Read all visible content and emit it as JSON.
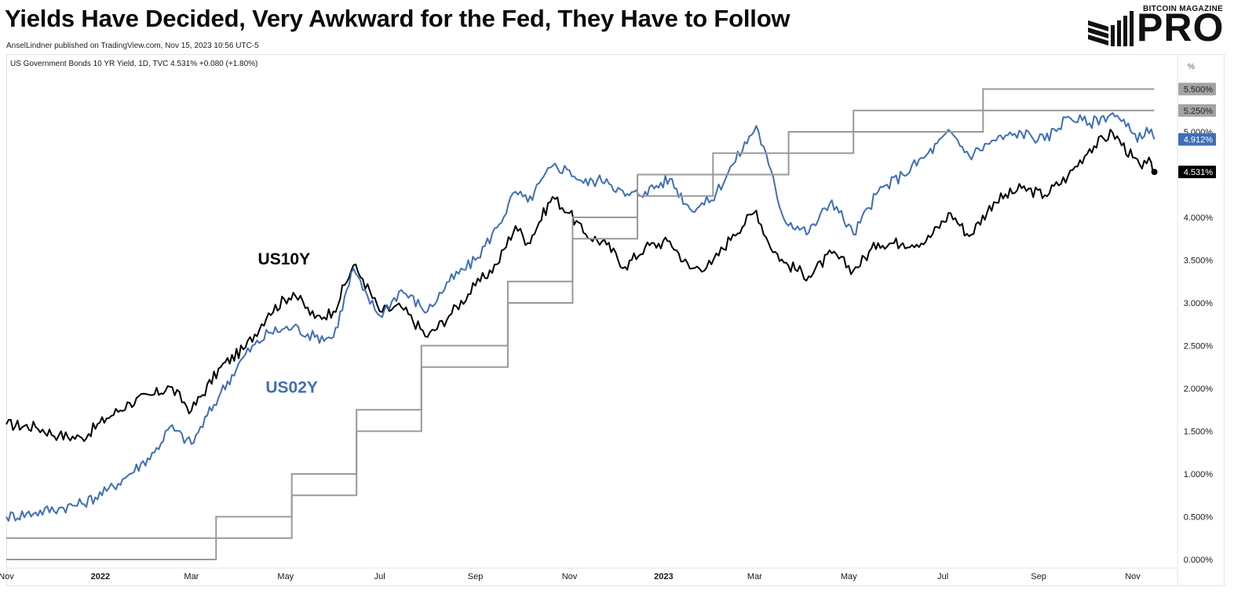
{
  "header": {
    "title": "Yields Have Decided, Very Awkward for the Fed, They Have to Follow",
    "byline": "AnselLindner published on TradingView.com, Nov 15, 2023 10:56 UTC-5",
    "brand_top": "BITCOIN MAGAZINE",
    "brand_main": "PRO"
  },
  "legend": {
    "text": "US Government Bonds 10 YR Yield, 1D, TVC  4.531%  +0.080 (+1.80%)"
  },
  "chart_data": {
    "type": "line",
    "title": "Yields Have Decided, Very Awkward for the Fed, They Have to Follow",
    "y_unit_label": "%",
    "ylim": [
      0,
      6
    ],
    "y_ticks": [
      "0.000%",
      "0.500%",
      "1.000%",
      "1.500%",
      "2.000%",
      "2.500%",
      "3.000%",
      "3.500%",
      "4.000%",
      "4.500%",
      "5.000%",
      "5.500%"
    ],
    "x_ticks": [
      "Nov",
      "2022",
      "Mar",
      "May",
      "Jul",
      "Sep",
      "Nov",
      "2023",
      "Mar",
      "May",
      "Jul",
      "Sep",
      "Nov"
    ],
    "x_tick_dates": [
      "2021-11-01",
      "2022-01-01",
      "2022-03-01",
      "2022-05-01",
      "2022-07-01",
      "2022-09-01",
      "2022-11-01",
      "2023-01-01",
      "2023-03-01",
      "2023-05-01",
      "2023-07-01",
      "2023-09-01",
      "2023-11-01"
    ],
    "x_range": [
      "2021-11-01",
      "2023-11-30"
    ],
    "series": [
      {
        "name": "US10Y",
        "color": "#000000",
        "last_label": "4.531%",
        "points": [
          [
            "2021-11-01",
            1.58
          ],
          [
            "2021-11-20",
            1.55
          ],
          [
            "2021-12-05",
            1.45
          ],
          [
            "2021-12-20",
            1.42
          ],
          [
            "2022-01-05",
            1.65
          ],
          [
            "2022-01-20",
            1.83
          ],
          [
            "2022-02-05",
            1.93
          ],
          [
            "2022-02-15",
            2.02
          ],
          [
            "2022-03-01",
            1.74
          ],
          [
            "2022-03-20",
            2.25
          ],
          [
            "2022-04-05",
            2.48
          ],
          [
            "2022-04-20",
            2.88
          ],
          [
            "2022-05-06",
            3.12
          ],
          [
            "2022-05-20",
            2.82
          ],
          [
            "2022-06-01",
            2.9
          ],
          [
            "2022-06-14",
            3.44
          ],
          [
            "2022-06-20",
            3.28
          ],
          [
            "2022-07-01",
            2.9
          ],
          [
            "2022-07-15",
            2.95
          ],
          [
            "2022-08-01",
            2.6
          ],
          [
            "2022-08-15",
            2.85
          ],
          [
            "2022-09-01",
            3.2
          ],
          [
            "2022-09-15",
            3.45
          ],
          [
            "2022-09-27",
            3.9
          ],
          [
            "2022-10-05",
            3.7
          ],
          [
            "2022-10-21",
            4.24
          ],
          [
            "2022-11-01",
            4.05
          ],
          [
            "2022-11-10",
            3.82
          ],
          [
            "2022-11-25",
            3.68
          ],
          [
            "2022-12-07",
            3.42
          ],
          [
            "2022-12-20",
            3.65
          ],
          [
            "2023-01-05",
            3.72
          ],
          [
            "2023-01-18",
            3.4
          ],
          [
            "2023-02-01",
            3.45
          ],
          [
            "2023-02-15",
            3.8
          ],
          [
            "2023-03-02",
            4.08
          ],
          [
            "2023-03-10",
            3.7
          ],
          [
            "2023-03-20",
            3.47
          ],
          [
            "2023-04-05",
            3.31
          ],
          [
            "2023-04-20",
            3.58
          ],
          [
            "2023-05-04",
            3.38
          ],
          [
            "2023-05-20",
            3.7
          ],
          [
            "2023-06-05",
            3.7
          ],
          [
            "2023-06-20",
            3.72
          ],
          [
            "2023-07-06",
            4.05
          ],
          [
            "2023-07-18",
            3.78
          ],
          [
            "2023-08-03",
            4.18
          ],
          [
            "2023-08-21",
            4.34
          ],
          [
            "2023-09-05",
            4.26
          ],
          [
            "2023-09-20",
            4.48
          ],
          [
            "2023-10-04",
            4.8
          ],
          [
            "2023-10-19",
            4.99
          ],
          [
            "2023-11-01",
            4.7
          ],
          [
            "2023-11-07",
            4.57
          ],
          [
            "2023-11-10",
            4.63
          ],
          [
            "2023-11-13",
            4.64
          ],
          [
            "2023-11-15",
            4.531
          ]
        ]
      },
      {
        "name": "US02Y",
        "color": "#3f6fb5",
        "last_label": "4.912%",
        "points": [
          [
            "2021-11-01",
            0.5
          ],
          [
            "2021-11-20",
            0.55
          ],
          [
            "2021-12-05",
            0.6
          ],
          [
            "2021-12-20",
            0.65
          ],
          [
            "2022-01-05",
            0.8
          ],
          [
            "2022-01-20",
            1.0
          ],
          [
            "2022-02-05",
            1.25
          ],
          [
            "2022-02-15",
            1.55
          ],
          [
            "2022-03-01",
            1.35
          ],
          [
            "2022-03-20",
            1.95
          ],
          [
            "2022-04-05",
            2.4
          ],
          [
            "2022-04-20",
            2.65
          ],
          [
            "2022-05-06",
            2.72
          ],
          [
            "2022-05-20",
            2.6
          ],
          [
            "2022-06-01",
            2.6
          ],
          [
            "2022-06-14",
            3.4
          ],
          [
            "2022-06-20",
            3.15
          ],
          [
            "2022-07-01",
            2.85
          ],
          [
            "2022-07-15",
            3.15
          ],
          [
            "2022-08-01",
            2.9
          ],
          [
            "2022-08-15",
            3.25
          ],
          [
            "2022-09-01",
            3.5
          ],
          [
            "2022-09-15",
            3.88
          ],
          [
            "2022-09-27",
            4.3
          ],
          [
            "2022-10-05",
            4.18
          ],
          [
            "2022-10-21",
            4.6
          ],
          [
            "2022-11-01",
            4.55
          ],
          [
            "2022-11-10",
            4.4
          ],
          [
            "2022-11-25",
            4.45
          ],
          [
            "2022-12-07",
            4.25
          ],
          [
            "2022-12-20",
            4.3
          ],
          [
            "2023-01-05",
            4.45
          ],
          [
            "2023-01-18",
            4.1
          ],
          [
            "2023-02-01",
            4.2
          ],
          [
            "2023-02-15",
            4.62
          ],
          [
            "2023-03-02",
            5.07
          ],
          [
            "2023-03-10",
            4.62
          ],
          [
            "2023-03-20",
            3.98
          ],
          [
            "2023-04-05",
            3.82
          ],
          [
            "2023-04-20",
            4.2
          ],
          [
            "2023-05-04",
            3.8
          ],
          [
            "2023-05-20",
            4.3
          ],
          [
            "2023-06-05",
            4.5
          ],
          [
            "2023-06-20",
            4.72
          ],
          [
            "2023-07-06",
            5.0
          ],
          [
            "2023-07-18",
            4.72
          ],
          [
            "2023-08-03",
            4.9
          ],
          [
            "2023-08-21",
            4.99
          ],
          [
            "2023-09-05",
            4.9
          ],
          [
            "2023-09-20",
            5.18
          ],
          [
            "2023-10-04",
            5.1
          ],
          [
            "2023-10-19",
            5.22
          ],
          [
            "2023-11-01",
            4.98
          ],
          [
            "2023-11-07",
            4.92
          ],
          [
            "2023-11-10",
            5.05
          ],
          [
            "2023-11-13",
            5.03
          ],
          [
            "2023-11-15",
            4.912
          ]
        ]
      },
      {
        "name": "",
        "color": "#999999",
        "last_label": "5.500%",
        "steps": [
          [
            "2021-11-01",
            0.25
          ],
          [
            "2022-03-17",
            0.5
          ],
          [
            "2022-05-05",
            1.0
          ],
          [
            "2022-06-16",
            1.75
          ],
          [
            "2022-07-28",
            2.5
          ],
          [
            "2022-09-22",
            3.25
          ],
          [
            "2022-11-03",
            4.0
          ],
          [
            "2022-12-15",
            4.5
          ],
          [
            "2023-02-02",
            4.75
          ],
          [
            "2023-03-23",
            5.0
          ],
          [
            "2023-05-04",
            5.25
          ],
          [
            "2023-07-27",
            5.5
          ],
          [
            "2023-11-15",
            5.5
          ]
        ]
      },
      {
        "name": "",
        "color": "#999999",
        "last_label": "5.250%",
        "steps": [
          [
            "2021-11-01",
            0.0
          ],
          [
            "2022-03-17",
            0.25
          ],
          [
            "2022-05-05",
            0.75
          ],
          [
            "2022-06-16",
            1.5
          ],
          [
            "2022-07-28",
            2.25
          ],
          [
            "2022-09-22",
            3.0
          ],
          [
            "2022-11-03",
            3.75
          ],
          [
            "2022-12-15",
            4.25
          ],
          [
            "2023-02-02",
            4.5
          ],
          [
            "2023-03-23",
            4.75
          ],
          [
            "2023-05-04",
            5.0
          ],
          [
            "2023-07-27",
            5.25
          ],
          [
            "2023-11-15",
            5.25
          ]
        ]
      }
    ],
    "annotations": [
      {
        "text": "US10Y",
        "color": "#000000",
        "date": "2022-04-30",
        "y": 3.45
      },
      {
        "text": "US02Y",
        "color": "#3f6fb5",
        "date": "2022-05-05",
        "y": 1.95
      }
    ],
    "axis_price_labels": [
      {
        "text": "5.500%",
        "value": 5.5,
        "bg": "#a3a3a3",
        "fg": "#222222"
      },
      {
        "text": "5.250%",
        "value": 5.25,
        "bg": "#a3a3a3",
        "fg": "#222222"
      },
      {
        "text": "4.912%",
        "value": 4.912,
        "bg": "#3f6fb5",
        "fg": "#ffffff"
      },
      {
        "text": "4.531%",
        "value": 4.531,
        "bg": "#000000",
        "fg": "#ffffff"
      }
    ],
    "grid": false,
    "legend_position": "top-left"
  }
}
